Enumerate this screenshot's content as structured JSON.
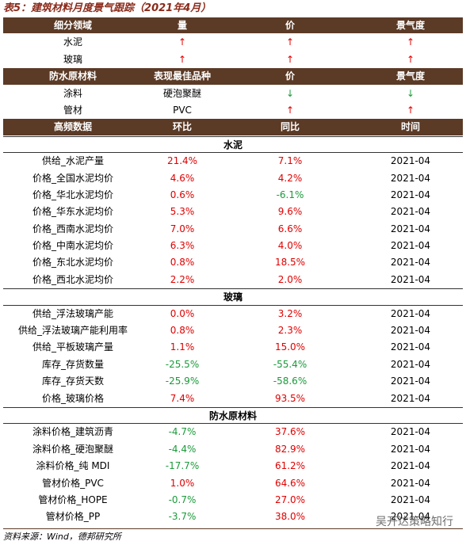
{
  "header": {
    "title": "表5：建筑材料月度景气跟踪（2021年4月）"
  },
  "table1": {
    "header": [
      "细分领域",
      "量",
      "价",
      "景气度"
    ],
    "rows": [
      [
        "水泥",
        "↑",
        "↑",
        "↑"
      ],
      [
        "玻璃",
        "↑",
        "↑",
        "↑"
      ]
    ]
  },
  "table2": {
    "header": [
      "防水原材料",
      "表现最佳品种",
      "价",
      "景气度"
    ],
    "rows": [
      [
        "涂料",
        "硬泡聚醚",
        "↓",
        "↓"
      ],
      [
        "管材",
        "PVC",
        "↑",
        "↑"
      ]
    ]
  },
  "table3": {
    "header": [
      "高频数据",
      "环比",
      "同比",
      "时间"
    ],
    "sections": [
      {
        "title": "水泥",
        "rows": [
          [
            "供给_水泥产量",
            "21.4%",
            "7.1%",
            "2021-04"
          ],
          [
            "价格_全国水泥均价",
            "4.6%",
            "4.2%",
            "2021-04"
          ],
          [
            "价格_华北水泥均价",
            "0.6%",
            "-6.1%",
            "2021-04"
          ],
          [
            "价格_华东水泥均价",
            "5.3%",
            "9.6%",
            "2021-04"
          ],
          [
            "价格_西南水泥均价",
            "7.0%",
            "6.6%",
            "2021-04"
          ],
          [
            "价格_中南水泥均价",
            "6.3%",
            "4.0%",
            "2021-04"
          ],
          [
            "价格_东北水泥均价",
            "0.8%",
            "18.5%",
            "2021-04"
          ],
          [
            "价格_西北水泥均价",
            "2.2%",
            "2.0%",
            "2021-04"
          ]
        ]
      },
      {
        "title": "玻璃",
        "rows": [
          [
            "供给_浮法玻璃产能",
            "0.0%",
            "3.2%",
            "2021-04"
          ],
          [
            "供给_浮法玻璃产能利用率",
            "0.8%",
            "2.3%",
            "2021-04"
          ],
          [
            "供给_平板玻璃产量",
            "1.1%",
            "15.0%",
            "2021-04"
          ],
          [
            "库存_存货数量",
            "-25.5%",
            "-55.4%",
            "2021-04"
          ],
          [
            "库存_存货天数",
            "-25.9%",
            "-58.6%",
            "2021-04"
          ],
          [
            "价格_玻璃价格",
            "7.4%",
            "93.5%",
            "2021-04"
          ]
        ]
      },
      {
        "title": "防水原材料",
        "rows": [
          [
            "涂料价格_建筑沥青",
            "-4.7%",
            "37.6%",
            "2021-04"
          ],
          [
            "涂料价格_硬泡聚醚",
            "-4.4%",
            "82.9%",
            "2021-04"
          ],
          [
            "涂料价格_纯 MDI",
            "-17.7%",
            "61.2%",
            "2021-04"
          ],
          [
            "管材价格_PVC",
            "1.0%",
            "64.6%",
            "2021-04"
          ],
          [
            "管材价格_HOPE",
            "-0.7%",
            "27.0%",
            "2021-04"
          ],
          [
            "管材价格_PP",
            "-3.7%",
            "38.0%",
            "2021-04"
          ]
        ]
      }
    ]
  },
  "footer": {
    "source": "资料来源：Wind，德邦研究所",
    "watermark": "吴开达策略知行"
  }
}
